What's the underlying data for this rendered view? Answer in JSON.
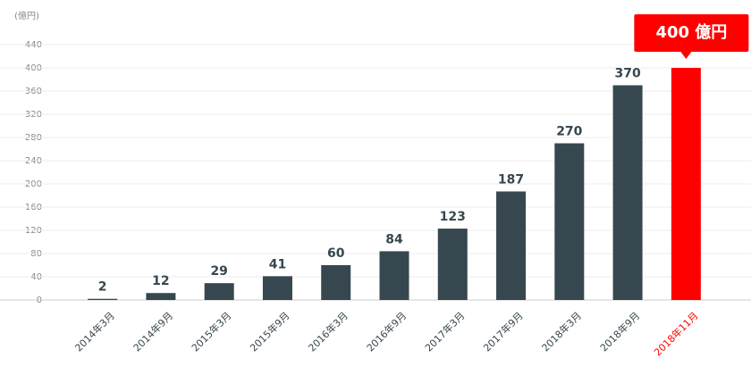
{
  "chart_data": {
    "type": "bar",
    "y_unit": "(億円)",
    "categories": [
      "2014年3月",
      "2014年9月",
      "2015年3月",
      "2015年9月",
      "2016年3月",
      "2016年9月",
      "2017年3月",
      "2017年9月",
      "2018年3月",
      "2018年9月",
      "2018年11月"
    ],
    "values": [
      2,
      12,
      29,
      41,
      60,
      84,
      123,
      187,
      270,
      370,
      400
    ],
    "value_labels": [
      "2",
      "12",
      "29",
      "41",
      "60",
      "84",
      "123",
      "187",
      "270",
      "370",
      "400 億円"
    ],
    "color": "#37474f",
    "colors": [
      "#37474f",
      "#37474f",
      "#37474f",
      "#37474f",
      "#37474f",
      "#37474f",
      "#37474f",
      "#37474f",
      "#37474f",
      "#37474f",
      "#ff0000"
    ],
    "ylim": [
      0,
      440
    ],
    "yticks": [
      0,
      40,
      80,
      120,
      160,
      200,
      240,
      280,
      320,
      360,
      400,
      440
    ],
    "grid": true
  }
}
